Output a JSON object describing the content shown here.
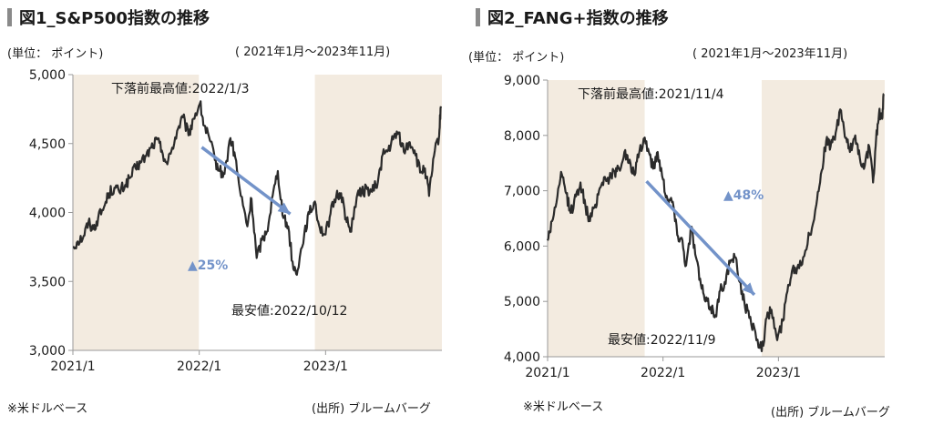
{
  "charts": [
    {
      "title": "図1_S&P500指数の推移",
      "unit": "(単位： ポイント)",
      "period": "( 2021年1月～2023年11月)",
      "note": "※米ドルベース",
      "source": "(出所) ブルームバーグ",
      "peak_label": "下落前最高値:2022/1/3",
      "trough_label": "最安値:2022/10/12",
      "drop_label": "▲25%"
    },
    {
      "title": "図2_FANG+指数の推移",
      "unit": "(単位： ポイント)",
      "period": "( 2021年1月～2023年11月)",
      "note": "※米ドルベース",
      "source": "(出所) ブルームバーグ",
      "peak_label": "下落前最高値:2021/11/4",
      "trough_label": "最安値:2022/11/9",
      "drop_label": "▲48%"
    }
  ],
  "colors": {
    "line": "#2b2b2b",
    "shade": "#f3ebe0",
    "arrow": "#7393c9",
    "axis": "#9a9a9a"
  },
  "chart_data": [
    {
      "type": "line",
      "title": "図1_S&P500指数の推移",
      "series": [
        {
          "points": [
            [
              "2021-01-01",
              3750
            ],
            [
              "2021-01-15",
              3790
            ],
            [
              "2021-02-01",
              3830
            ],
            [
              "2021-02-15",
              3930
            ],
            [
              "2021-03-01",
              3880
            ],
            [
              "2021-03-15",
              3960
            ],
            [
              "2021-04-01",
              4040
            ],
            [
              "2021-04-15",
              4140
            ],
            [
              "2021-05-01",
              4180
            ],
            [
              "2021-05-15",
              4150
            ],
            [
              "2021-06-01",
              4200
            ],
            [
              "2021-06-15",
              4250
            ],
            [
              "2021-07-01",
              4320
            ],
            [
              "2021-07-15",
              4360
            ],
            [
              "2021-08-01",
              4410
            ],
            [
              "2021-08-15",
              4470
            ],
            [
              "2021-09-01",
              4530
            ],
            [
              "2021-09-15",
              4450
            ],
            [
              "2021-10-01",
              4350
            ],
            [
              "2021-10-15",
              4470
            ],
            [
              "2021-11-01",
              4610
            ],
            [
              "2021-11-15",
              4690
            ],
            [
              "2021-12-01",
              4560
            ],
            [
              "2021-12-15",
              4680
            ],
            [
              "2022-01-03",
              4790
            ],
            [
              "2022-01-15",
              4630
            ],
            [
              "2022-02-01",
              4520
            ],
            [
              "2022-02-15",
              4380
            ],
            [
              "2022-03-01",
              4300
            ],
            [
              "2022-03-15",
              4280
            ],
            [
              "2022-04-01",
              4540
            ],
            [
              "2022-04-15",
              4400
            ],
            [
              "2022-05-01",
              4120
            ],
            [
              "2022-05-20",
              3900
            ],
            [
              "2022-06-01",
              4100
            ],
            [
              "2022-06-16",
              3670
            ],
            [
              "2022-07-01",
              3800
            ],
            [
              "2022-07-15",
              3860
            ],
            [
              "2022-08-01",
              4120
            ],
            [
              "2022-08-16",
              4300
            ],
            [
              "2022-09-01",
              3960
            ],
            [
              "2022-09-15",
              3900
            ],
            [
              "2022-09-30",
              3590
            ],
            [
              "2022-10-12",
              3580
            ],
            [
              "2022-11-01",
              3860
            ],
            [
              "2022-11-15",
              3990
            ],
            [
              "2022-12-01",
              4080
            ],
            [
              "2022-12-15",
              3890
            ],
            [
              "2023-01-01",
              3840
            ],
            [
              "2023-01-15",
              3990
            ],
            [
              "2023-02-01",
              4120
            ],
            [
              "2023-02-15",
              4140
            ],
            [
              "2023-03-01",
              3960
            ],
            [
              "2023-03-13",
              3860
            ],
            [
              "2023-04-01",
              4110
            ],
            [
              "2023-04-15",
              4150
            ],
            [
              "2023-05-01",
              4170
            ],
            [
              "2023-05-15",
              4150
            ],
            [
              "2023-06-01",
              4220
            ],
            [
              "2023-06-15",
              4420
            ],
            [
              "2023-07-01",
              4450
            ],
            [
              "2023-07-15",
              4530
            ],
            [
              "2023-07-31",
              4580
            ],
            [
              "2023-08-15",
              4440
            ],
            [
              "2023-09-01",
              4510
            ],
            [
              "2023-09-15",
              4450
            ],
            [
              "2023-10-01",
              4290
            ],
            [
              "2023-10-15",
              4320
            ],
            [
              "2023-10-27",
              4120
            ],
            [
              "2023-11-10",
              4410
            ],
            [
              "2023-11-25",
              4560
            ],
            [
              "2023-11-30",
              4770
            ]
          ]
        }
      ],
      "x_range": [
        "2021-01-01",
        "2023-12-03"
      ],
      "x_ticks": [
        [
          "2021-01-01",
          "2021/1"
        ],
        [
          "2022-01-01",
          "2022/1"
        ],
        [
          "2023-01-01",
          "2023/1"
        ]
      ],
      "y_range": [
        3000,
        5000
      ],
      "y_ticks": [
        [
          3000,
          "3,000"
        ],
        [
          3500,
          "3,500"
        ],
        [
          4000,
          "4,000"
        ],
        [
          4500,
          "4,500"
        ],
        [
          5000,
          "5,000"
        ]
      ],
      "shaded_x": [
        [
          "2021-01-01",
          "2021-12-31"
        ],
        [
          "2022-12-01",
          "2023-12-03"
        ]
      ],
      "arrow": {
        "from": [
          "2022-01-03",
          4790
        ],
        "to": [
          "2022-10-12",
          3580
        ]
      }
    },
    {
      "type": "line",
      "title": "図2_FANG+指数の推移",
      "series": [
        {
          "points": [
            [
              "2021-01-01",
              6100
            ],
            [
              "2021-01-15",
              6450
            ],
            [
              "2021-02-01",
              6900
            ],
            [
              "2021-02-15",
              7300
            ],
            [
              "2021-03-01",
              6950
            ],
            [
              "2021-03-15",
              6600
            ],
            [
              "2021-04-01",
              6900
            ],
            [
              "2021-04-15",
              7150
            ],
            [
              "2021-05-01",
              6700
            ],
            [
              "2021-05-15",
              6450
            ],
            [
              "2021-06-01",
              6750
            ],
            [
              "2021-06-15",
              7050
            ],
            [
              "2021-07-01",
              7250
            ],
            [
              "2021-07-15",
              7200
            ],
            [
              "2021-08-01",
              7350
            ],
            [
              "2021-08-15",
              7400
            ],
            [
              "2021-09-01",
              7700
            ],
            [
              "2021-09-15",
              7500
            ],
            [
              "2021-10-01",
              7300
            ],
            [
              "2021-10-15",
              7600
            ],
            [
              "2021-11-04",
              7960
            ],
            [
              "2021-11-20",
              7650
            ],
            [
              "2021-12-01",
              7400
            ],
            [
              "2021-12-15",
              7700
            ],
            [
              "2022-01-01",
              7200
            ],
            [
              "2022-01-15",
              6850
            ],
            [
              "2022-02-01",
              6800
            ],
            [
              "2022-02-15",
              6200
            ],
            [
              "2022-03-01",
              6150
            ],
            [
              "2022-03-15",
              5650
            ],
            [
              "2022-04-01",
              6350
            ],
            [
              "2022-04-15",
              5800
            ],
            [
              "2022-05-01",
              5300
            ],
            [
              "2022-05-15",
              5000
            ],
            [
              "2022-06-01",
              4900
            ],
            [
              "2022-06-16",
              4750
            ],
            [
              "2022-07-01",
              5200
            ],
            [
              "2022-07-15",
              5350
            ],
            [
              "2022-08-01",
              5700
            ],
            [
              "2022-08-16",
              5800
            ],
            [
              "2022-09-01",
              5350
            ],
            [
              "2022-09-15",
              5000
            ],
            [
              "2022-10-01",
              4700
            ],
            [
              "2022-10-20",
              4450
            ],
            [
              "2022-11-09",
              4100
            ],
            [
              "2022-11-25",
              4700
            ],
            [
              "2022-12-10",
              4850
            ],
            [
              "2022-12-28",
              4300
            ],
            [
              "2023-01-15",
              4650
            ],
            [
              "2023-02-01",
              5300
            ],
            [
              "2023-02-15",
              5600
            ],
            [
              "2023-03-01",
              5600
            ],
            [
              "2023-03-20",
              5800
            ],
            [
              "2023-04-10",
              6200
            ],
            [
              "2023-05-01",
              6750
            ],
            [
              "2023-05-15",
              7300
            ],
            [
              "2023-06-01",
              7900
            ],
            [
              "2023-06-15",
              7800
            ],
            [
              "2023-07-01",
              8050
            ],
            [
              "2023-07-18",
              8450
            ],
            [
              "2023-08-01",
              7950
            ],
            [
              "2023-08-15",
              7700
            ],
            [
              "2023-09-01",
              8000
            ],
            [
              "2023-09-15",
              7600
            ],
            [
              "2023-10-01",
              7450
            ],
            [
              "2023-10-15",
              7800
            ],
            [
              "2023-10-27",
              7150
            ],
            [
              "2023-11-06",
              7950
            ],
            [
              "2023-11-15",
              8400
            ],
            [
              "2023-11-25",
              8300
            ],
            [
              "2023-11-30",
              8750
            ]
          ]
        }
      ],
      "x_range": [
        "2021-01-01",
        "2023-12-03"
      ],
      "x_ticks": [
        [
          "2021-01-01",
          "2021/1"
        ],
        [
          "2022-01-01",
          "2022/1"
        ],
        [
          "2023-01-01",
          "2023/1"
        ]
      ],
      "y_range": [
        4000,
        9000
      ],
      "y_ticks": [
        [
          4000,
          "4,000"
        ],
        [
          5000,
          "5,000"
        ],
        [
          6000,
          "6,000"
        ],
        [
          7000,
          "7,000"
        ],
        [
          8000,
          "8,000"
        ],
        [
          9000,
          "9,000"
        ]
      ],
      "shaded_x": [
        [
          "2021-01-01",
          "2021-11-04"
        ],
        [
          "2022-11-09",
          "2023-12-03"
        ]
      ],
      "arrow": {
        "from": [
          "2021-11-04",
          7960
        ],
        "to": [
          "2022-11-09",
          4100
        ]
      }
    }
  ]
}
